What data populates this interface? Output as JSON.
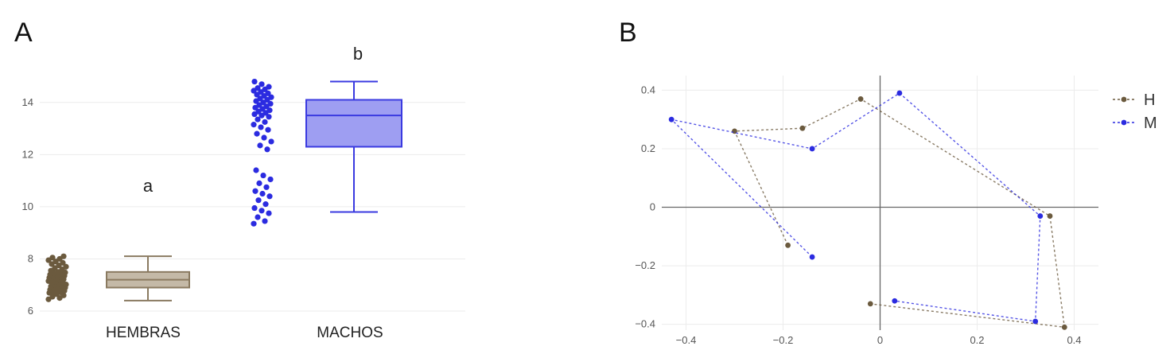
{
  "panels": {
    "a_label": "A",
    "b_label": "B"
  },
  "chart_data": [
    {
      "type": "box",
      "panel": "A",
      "categories": [
        "HEMBRAS",
        "MACHOS"
      ],
      "ylim": [
        6,
        15
      ],
      "yticks": [
        6,
        8,
        10,
        12,
        14
      ],
      "grid": "horizontal",
      "series": [
        {
          "category": "HEMBRAS",
          "color": "#6b5a3e",
          "box_fill": "#c4b9a7",
          "box_stroke": "#8a7a60",
          "significance": "a",
          "box": {
            "min": 6.4,
            "q1": 6.9,
            "median": 7.2,
            "q3": 7.5,
            "max": 8.1
          },
          "points": [
            6.45,
            6.5,
            6.55,
            6.6,
            6.65,
            6.7,
            6.72,
            6.75,
            6.78,
            6.8,
            6.82,
            6.85,
            6.88,
            6.9,
            6.92,
            6.95,
            6.98,
            7.0,
            7.02,
            7.05,
            7.08,
            7.1,
            7.12,
            7.15,
            7.18,
            7.2,
            7.22,
            7.25,
            7.28,
            7.3,
            7.32,
            7.35,
            7.38,
            7.4,
            7.42,
            7.45,
            7.48,
            7.5,
            7.55,
            7.6,
            7.65,
            7.7,
            7.75,
            7.8,
            7.85,
            7.9,
            7.95,
            8.0,
            8.05,
            8.1
          ]
        },
        {
          "category": "MACHOS",
          "color": "#2b2be0",
          "box_fill": "#9e9ef2",
          "box_stroke": "#3a3ae0",
          "significance": "b",
          "box": {
            "min": 9.8,
            "q1": 12.3,
            "median": 13.5,
            "q3": 14.1,
            "max": 14.8
          },
          "points": [
            9.35,
            9.45,
            9.6,
            9.75,
            9.85,
            9.95,
            10.1,
            10.25,
            10.4,
            10.5,
            10.6,
            10.75,
            10.9,
            11.05,
            11.2,
            11.4,
            12.2,
            12.35,
            12.5,
            12.65,
            12.8,
            12.95,
            13.05,
            13.15,
            13.25,
            13.35,
            13.45,
            13.5,
            13.55,
            13.6,
            13.65,
            13.7,
            13.75,
            13.8,
            13.85,
            13.9,
            13.95,
            14.0,
            14.05,
            14.1,
            14.15,
            14.2,
            14.25,
            14.3,
            14.35,
            14.4,
            14.45,
            14.5,
            14.55,
            14.6,
            14.7,
            14.8
          ]
        }
      ]
    },
    {
      "type": "line",
      "panel": "B",
      "xlim": [
        -0.45,
        0.45
      ],
      "ylim": [
        -0.42,
        0.45
      ],
      "xticks": [
        -0.4,
        -0.2,
        0,
        0.2,
        0.4
      ],
      "yticks": [
        -0.4,
        -0.2,
        0,
        0.2,
        0.4
      ],
      "x_tick_labels": [
        "−0.4",
        "−0.2",
        "0",
        "0.2",
        "0.4"
      ],
      "y_tick_labels": [
        "−0.4",
        "−0.2",
        "0",
        "0.2",
        "0.4"
      ],
      "grid": true,
      "legend_position": "top-right",
      "series": [
        {
          "name": "H",
          "color": "#6b5a3e",
          "line_style": "dotted",
          "points": [
            [
              -0.19,
              -0.13
            ],
            [
              -0.3,
              0.26
            ],
            [
              -0.16,
              0.27
            ],
            [
              -0.04,
              0.37
            ],
            [
              0.35,
              -0.03
            ],
            [
              0.38,
              -0.41
            ],
            [
              -0.02,
              -0.33
            ]
          ]
        },
        {
          "name": "M",
          "color": "#2b2be0",
          "line_style": "dotted",
          "points": [
            [
              -0.14,
              -0.17
            ],
            [
              -0.43,
              0.3
            ],
            [
              -0.14,
              0.2
            ],
            [
              0.04,
              0.39
            ],
            [
              0.33,
              -0.03
            ],
            [
              0.32,
              -0.39
            ],
            [
              0.03,
              -0.32
            ]
          ]
        }
      ]
    }
  ]
}
